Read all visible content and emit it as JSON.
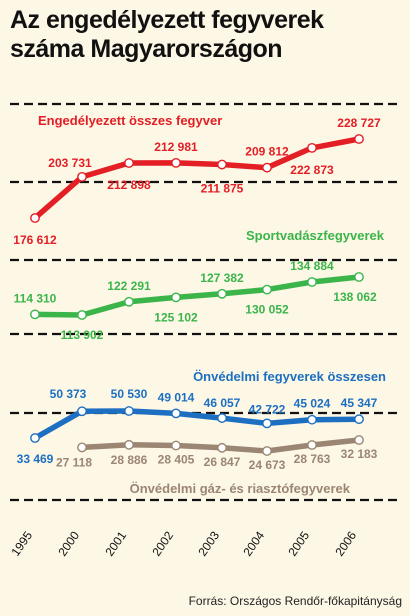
{
  "title_line1": "Az engedélyezett fegyverek",
  "title_line2": "száma Magyarországon",
  "source": "Forrás: Országos Rendőr-főkapitányság",
  "colors": {
    "background": "#fdf7e6",
    "total": "#e31e24",
    "sport": "#3bb54a",
    "self_defense": "#1c6fc1",
    "gas": "#9b8573",
    "dash": "#111111"
  },
  "chart_data": {
    "type": "line",
    "categories": [
      "1995",
      "2000",
      "2001",
      "2002",
      "2003",
      "2004",
      "2005",
      "2006"
    ],
    "series": [
      {
        "name": "Engedélyezett összes fegyver",
        "key": "total",
        "values": [
          176612,
          203731,
          212898,
          212981,
          211875,
          209812,
          222873,
          228727
        ],
        "labels": [
          "176 612",
          "203 731",
          "212 898",
          "212 981",
          "211 875",
          "209 812",
          "222 873",
          "228 727"
        ]
      },
      {
        "name": "Sportvadászfegyverek",
        "key": "sport",
        "values": [
          114310,
          113902,
          122291,
          125102,
          127382,
          130052,
          134884,
          138062
        ],
        "labels": [
          "114 310",
          "113 902",
          "122 291",
          "125 102",
          "127 382",
          "130 052",
          "134 884",
          "138 062"
        ]
      },
      {
        "name": "Önvédelmi fegyverek összesen",
        "key": "self_defense",
        "values": [
          33469,
          50373,
          50530,
          49014,
          46057,
          42722,
          45024,
          45347
        ],
        "labels": [
          "33 469",
          "50 373",
          "50 530",
          "49 014",
          "46 057",
          "42 722",
          "45 024",
          "45 347"
        ]
      },
      {
        "name": "Önvédelmi gáz- és riasztófegyverek",
        "key": "gas",
        "values": [
          null,
          27118,
          28886,
          28405,
          26847,
          24673,
          28763,
          32183
        ],
        "labels": [
          "",
          "27 118",
          "28 886",
          "28 405",
          "26 847",
          "24 673",
          "28 763",
          "32 183"
        ]
      }
    ]
  }
}
